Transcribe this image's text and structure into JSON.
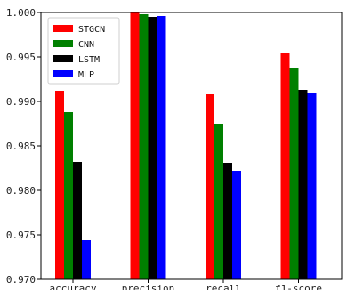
{
  "chart_data": {
    "type": "bar",
    "title": "",
    "xlabel": "",
    "ylabel": "",
    "categories": [
      "accuracy",
      "precision",
      "recall",
      "f1-score"
    ],
    "series": [
      {
        "name": "STGCN",
        "color": "#ff0000",
        "values": [
          0.9912,
          1.0,
          0.9908,
          0.9954
        ]
      },
      {
        "name": "CNN",
        "color": "#008000",
        "values": [
          0.9888,
          0.9998,
          0.9875,
          0.9937
        ]
      },
      {
        "name": "LSTM",
        "color": "#000000",
        "values": [
          0.9832,
          0.9995,
          0.9831,
          0.9913
        ]
      },
      {
        "name": "MLP",
        "color": "#0000ff",
        "values": [
          0.9744,
          0.9996,
          0.9822,
          0.9909
        ]
      }
    ],
    "ylim": [
      0.97,
      1.0
    ],
    "yticks": [
      "0.970",
      "0.975",
      "0.980",
      "0.985",
      "0.990",
      "0.995",
      "1.000"
    ],
    "grid": false,
    "legend_position": "top-left"
  }
}
